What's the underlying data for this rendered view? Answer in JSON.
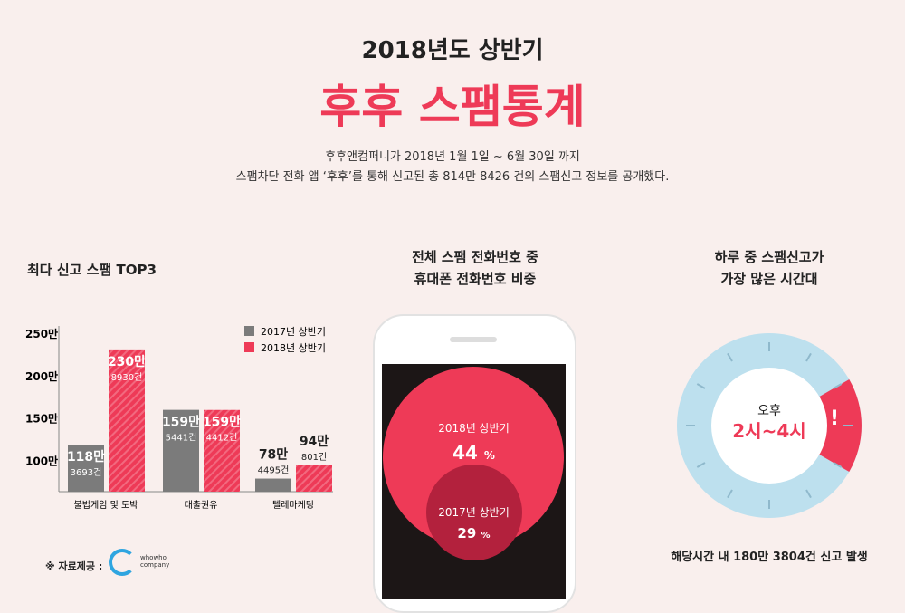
{
  "header": {
    "subtitle": "2018년도 상반기",
    "title": "후후 스팸통계",
    "desc1": "후후앤컴퍼니가 2018년 1월 1일 ~ 6월 30일 까지",
    "desc2": "스팸차단 전화 앱 ‘후후’를 통해 신고된  총 814만 8426 건의 스팸신고 정보를 공개했다."
  },
  "colors": {
    "accent": "#ee3a57",
    "gray": "#7b7b7b",
    "dark_red": "#b3213d",
    "ring": "#bde0ee"
  },
  "chart_data": {
    "type": "bar",
    "title": "최다 신고 스팸 TOP3",
    "ylabel": "",
    "ylim": [
      63,
      250
    ],
    "yticks": [
      "100만",
      "150만",
      "200만",
      "250만"
    ],
    "ytick_values": [
      100,
      150,
      200,
      250
    ],
    "categories": [
      "불법게임 및 도박",
      "대출권유",
      "텔레마케팅"
    ],
    "legend_position": "top-right",
    "series": [
      {
        "name": "2017년 상반기",
        "values": [
          118.3693,
          159.5441,
          78.4495
        ],
        "labels": [
          [
            "118만",
            "3693건"
          ],
          [
            "159만",
            "5441건"
          ],
          [
            "78만",
            "4495건"
          ]
        ]
      },
      {
        "name": "2018년 상반기",
        "values": [
          230.893,
          159.4412,
          94.0801
        ],
        "labels": [
          [
            "230만",
            "8930건"
          ],
          [
            "159만",
            "4412건"
          ],
          [
            "94만",
            "801건"
          ]
        ]
      }
    ]
  },
  "mobile": {
    "title1": "전체 스팸 전화번호 중",
    "title2": "휴대폰 전화번호 비중",
    "outer_label": "2018년 상반기",
    "outer_value": "44",
    "inner_label": "2017년 상반기",
    "inner_value": "29",
    "unit": "%"
  },
  "time": {
    "title1": "하루 중 스팸신고가",
    "title2": "가장 많은 시간대",
    "ampm": "오후",
    "range": "2시~4시",
    "mark": "!",
    "footer": "해당시간 내 180만 3804건 신고 발생"
  },
  "source": {
    "label": "※ 자료제공 :",
    "logo": "whowho company"
  }
}
